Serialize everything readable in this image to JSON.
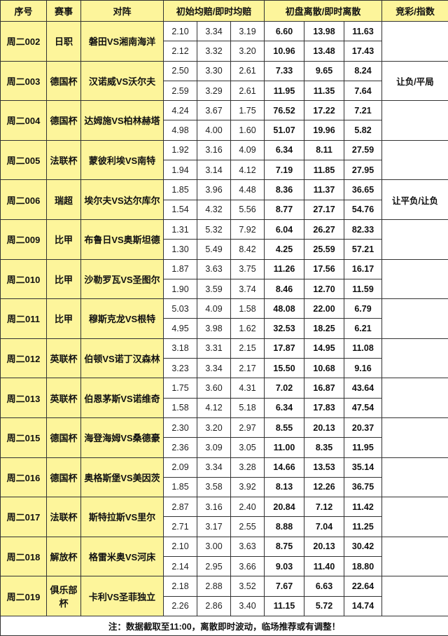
{
  "headers": [
    "序号",
    "赛事",
    "对阵",
    "初始均赔/即时均赔",
    "初盘离散/即时离散",
    "竞彩/指数"
  ],
  "colors": {
    "header_bg": "#fdf59b",
    "border": "#333333"
  },
  "matches": [
    {
      "id": "周二002",
      "league": "日职",
      "teams": "磐田VS湘南海洋",
      "odds": [
        [
          "2.10",
          "3.34",
          "3.19"
        ],
        [
          "2.12",
          "3.32",
          "3.20"
        ]
      ],
      "disp": [
        [
          "6.60",
          "13.98",
          "11.63"
        ],
        [
          "10.96",
          "13.48",
          "17.43"
        ]
      ],
      "tip": ""
    },
    {
      "id": "周二003",
      "league": "德国杯",
      "teams": "汉诺威VS沃尔夫",
      "odds": [
        [
          "2.50",
          "3.30",
          "2.61"
        ],
        [
          "2.59",
          "3.29",
          "2.61"
        ]
      ],
      "disp": [
        [
          "7.33",
          "9.65",
          "8.24"
        ],
        [
          "11.95",
          "11.35",
          "7.64"
        ]
      ],
      "tip": "让负/平局"
    },
    {
      "id": "周二004",
      "league": "德国杯",
      "teams": "达姆施VS柏林赫塔",
      "odds": [
        [
          "4.24",
          "3.67",
          "1.75"
        ],
        [
          "4.98",
          "4.00",
          "1.60"
        ]
      ],
      "disp": [
        [
          "76.52",
          "17.22",
          "7.21"
        ],
        [
          "51.07",
          "19.96",
          "5.82"
        ]
      ],
      "tip": ""
    },
    {
      "id": "周二005",
      "league": "法联杯",
      "teams": "蒙彼利埃VS南特",
      "odds": [
        [
          "1.92",
          "3.16",
          "4.09"
        ],
        [
          "1.94",
          "3.14",
          "4.12"
        ]
      ],
      "disp": [
        [
          "6.34",
          "8.11",
          "27.59"
        ],
        [
          "7.19",
          "11.85",
          "27.95"
        ]
      ],
      "tip": ""
    },
    {
      "id": "周二006",
      "league": "瑞超",
      "teams": "埃尔夫VS达尔库尔",
      "odds": [
        [
          "1.85",
          "3.96",
          "4.48"
        ],
        [
          "1.54",
          "4.32",
          "5.56"
        ]
      ],
      "disp": [
        [
          "8.36",
          "11.37",
          "36.65"
        ],
        [
          "8.77",
          "27.17",
          "54.76"
        ]
      ],
      "tip": "让平负/让负"
    },
    {
      "id": "周二009",
      "league": "比甲",
      "teams": "布鲁日VS奥斯坦德",
      "odds": [
        [
          "1.31",
          "5.32",
          "7.92"
        ],
        [
          "1.30",
          "5.49",
          "8.42"
        ]
      ],
      "disp": [
        [
          "6.04",
          "26.27",
          "82.33"
        ],
        [
          "4.25",
          "25.59",
          "57.21"
        ]
      ],
      "tip": ""
    },
    {
      "id": "周二010",
      "league": "比甲",
      "teams": "沙勒罗瓦VS圣图尔",
      "odds": [
        [
          "1.87",
          "3.63",
          "3.75"
        ],
        [
          "1.90",
          "3.59",
          "3.74"
        ]
      ],
      "disp": [
        [
          "11.26",
          "17.56",
          "16.17"
        ],
        [
          "8.46",
          "12.70",
          "11.59"
        ]
      ],
      "tip": ""
    },
    {
      "id": "周二011",
      "league": "比甲",
      "teams": "穆斯克龙VS根特",
      "odds": [
        [
          "5.03",
          "4.09",
          "1.58"
        ],
        [
          "4.95",
          "3.98",
          "1.62"
        ]
      ],
      "disp": [
        [
          "48.08",
          "22.00",
          "6.79"
        ],
        [
          "32.53",
          "18.25",
          "6.21"
        ]
      ],
      "tip": ""
    },
    {
      "id": "周二012",
      "league": "英联杯",
      "teams": "伯顿VS诺丁汉森林",
      "odds": [
        [
          "3.18",
          "3.31",
          "2.15"
        ],
        [
          "3.23",
          "3.34",
          "2.17"
        ]
      ],
      "disp": [
        [
          "17.87",
          "14.95",
          "11.08"
        ],
        [
          "15.50",
          "10.68",
          "9.16"
        ]
      ],
      "tip": ""
    },
    {
      "id": "周二013",
      "league": "英联杯",
      "teams": "伯恩茅斯VS诺维奇",
      "odds": [
        [
          "1.75",
          "3.60",
          "4.31"
        ],
        [
          "1.58",
          "4.12",
          "5.18"
        ]
      ],
      "disp": [
        [
          "7.02",
          "16.87",
          "43.64"
        ],
        [
          "6.34",
          "17.83",
          "47.54"
        ]
      ],
      "tip": ""
    },
    {
      "id": "周二015",
      "league": "德国杯",
      "teams": "海登海姆VS桑德豪",
      "odds": [
        [
          "2.30",
          "3.20",
          "2.97"
        ],
        [
          "2.36",
          "3.09",
          "3.05"
        ]
      ],
      "disp": [
        [
          "8.55",
          "20.13",
          "20.37"
        ],
        [
          "11.00",
          "8.35",
          "11.95"
        ]
      ],
      "tip": ""
    },
    {
      "id": "周二016",
      "league": "德国杯",
      "teams": "奥格斯堡VS美因茨",
      "odds": [
        [
          "2.09",
          "3.34",
          "3.28"
        ],
        [
          "1.85",
          "3.58",
          "3.92"
        ]
      ],
      "disp": [
        [
          "14.66",
          "13.53",
          "35.14"
        ],
        [
          "8.13",
          "12.26",
          "36.75"
        ]
      ],
      "tip": ""
    },
    {
      "id": "周二017",
      "league": "法联杯",
      "teams": "斯特拉斯VS里尔",
      "odds": [
        [
          "2.87",
          "3.16",
          "2.40"
        ],
        [
          "2.71",
          "3.17",
          "2.55"
        ]
      ],
      "disp": [
        [
          "20.84",
          "7.12",
          "11.42"
        ],
        [
          "8.88",
          "7.04",
          "11.25"
        ]
      ],
      "tip": ""
    },
    {
      "id": "周二018",
      "league": "解放杯",
      "teams": "格雷米奥VS河床",
      "odds": [
        [
          "2.10",
          "3.00",
          "3.63"
        ],
        [
          "2.14",
          "2.95",
          "3.66"
        ]
      ],
      "disp": [
        [
          "8.75",
          "20.13",
          "30.42"
        ],
        [
          "9.03",
          "11.40",
          "18.80"
        ]
      ],
      "tip": ""
    },
    {
      "id": "周二019",
      "league": "俱乐部杯",
      "teams": "卡利VS圣菲独立",
      "odds": [
        [
          "2.18",
          "2.88",
          "3.52"
        ],
        [
          "2.26",
          "2.86",
          "3.40"
        ]
      ],
      "disp": [
        [
          "7.67",
          "6.63",
          "22.64"
        ],
        [
          "11.15",
          "5.72",
          "14.74"
        ]
      ],
      "tip": ""
    }
  ],
  "note": "注：数据截取至11:00，离散即时波动，临场推荐或有调整！"
}
